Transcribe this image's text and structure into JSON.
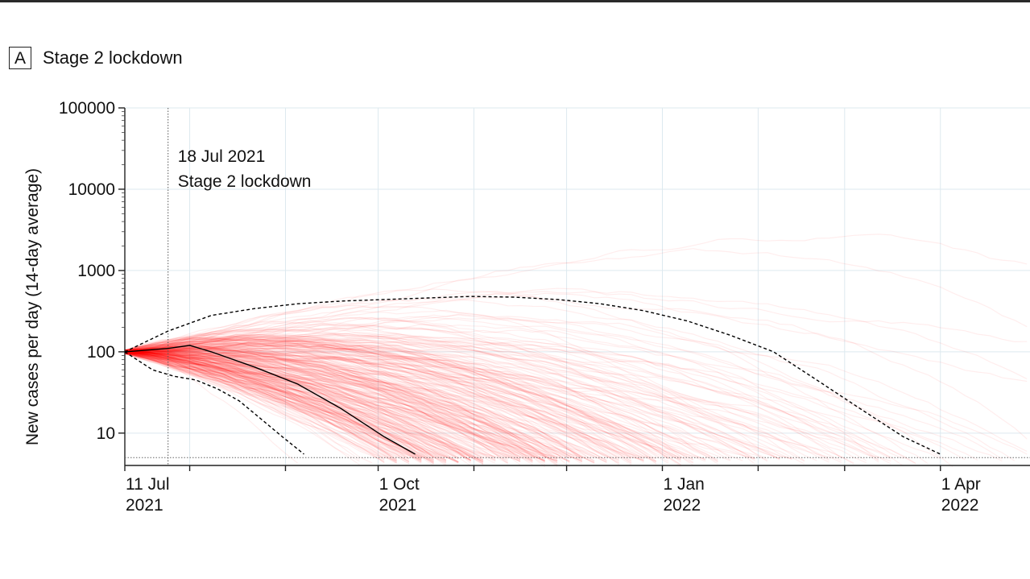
{
  "panel": {
    "letter": "A",
    "title": "Stage 2 lockdown"
  },
  "chart_data": {
    "type": "line",
    "ylabel": "New cases per day (14-day average)",
    "yscale": "log",
    "ylim": [
      4,
      100000
    ],
    "xlim": [
      "2021-07-11",
      "2022-04-30"
    ],
    "y_ticks": [
      {
        "value": 10,
        "label": "10"
      },
      {
        "value": 100,
        "label": "100"
      },
      {
        "value": 1000,
        "label": "1000"
      },
      {
        "value": 10000,
        "label": "10000"
      },
      {
        "value": 100000,
        "label": "100000"
      }
    ],
    "x_ticks": [
      {
        "date": "2021-07-11",
        "label1": "11 Jul",
        "label2": "2021"
      },
      {
        "date": "2021-10-01",
        "label1": "1 Oct",
        "label2": "2021"
      },
      {
        "date": "2022-01-01",
        "label1": "1 Jan",
        "label2": "2022"
      },
      {
        "date": "2022-04-01",
        "label1": "1 Apr",
        "label2": "2022"
      }
    ],
    "minor_x_ticks": [
      "2021-08-01",
      "2021-09-01",
      "2021-11-01",
      "2021-12-01",
      "2022-02-01",
      "2022-03-01"
    ],
    "annotation": {
      "date": "2021-07-25",
      "line1": "18 Jul 2021",
      "line2": "Stage 2 lockdown"
    },
    "detection_threshold": 5,
    "ensemble_color": "#ff0000",
    "median_color": "#000000",
    "series": [
      {
        "line_style": "dashed",
        "x": [
          "2021-07-11",
          "2021-07-25",
          "2021-08-08",
          "2021-08-22",
          "2021-09-05",
          "2021-09-19",
          "2021-10-03",
          "2021-10-17",
          "2021-10-31",
          "2021-11-14",
          "2021-11-28",
          "2021-12-12",
          "2021-12-26",
          "2022-01-09",
          "2022-01-23",
          "2022-02-06",
          "2022-02-20",
          "2022-03-06",
          "2022-03-20",
          "2022-04-01"
        ],
        "values": [
          100,
          180,
          280,
          340,
          390,
          420,
          440,
          460,
          480,
          470,
          440,
          390,
          320,
          240,
          160,
          100,
          45,
          20,
          9,
          5.5
        ]
      },
      {
        "line_style": "solid",
        "x": [
          "2021-07-11",
          "2021-07-25",
          "2021-08-01",
          "2021-08-08",
          "2021-08-22",
          "2021-09-05",
          "2021-09-19",
          "2021-10-03",
          "2021-10-13"
        ],
        "values": [
          100,
          110,
          120,
          100,
          65,
          40,
          20,
          9,
          5.5
        ]
      },
      {
        "line_style": "dashed",
        "x": [
          "2021-07-11",
          "2021-07-20",
          "2021-07-27",
          "2021-08-03",
          "2021-08-10",
          "2021-08-17",
          "2021-08-24",
          "2021-08-31",
          "2021-09-07"
        ],
        "values": [
          100,
          60,
          50,
          45,
          35,
          25,
          15,
          9,
          5.5
        ]
      }
    ]
  }
}
